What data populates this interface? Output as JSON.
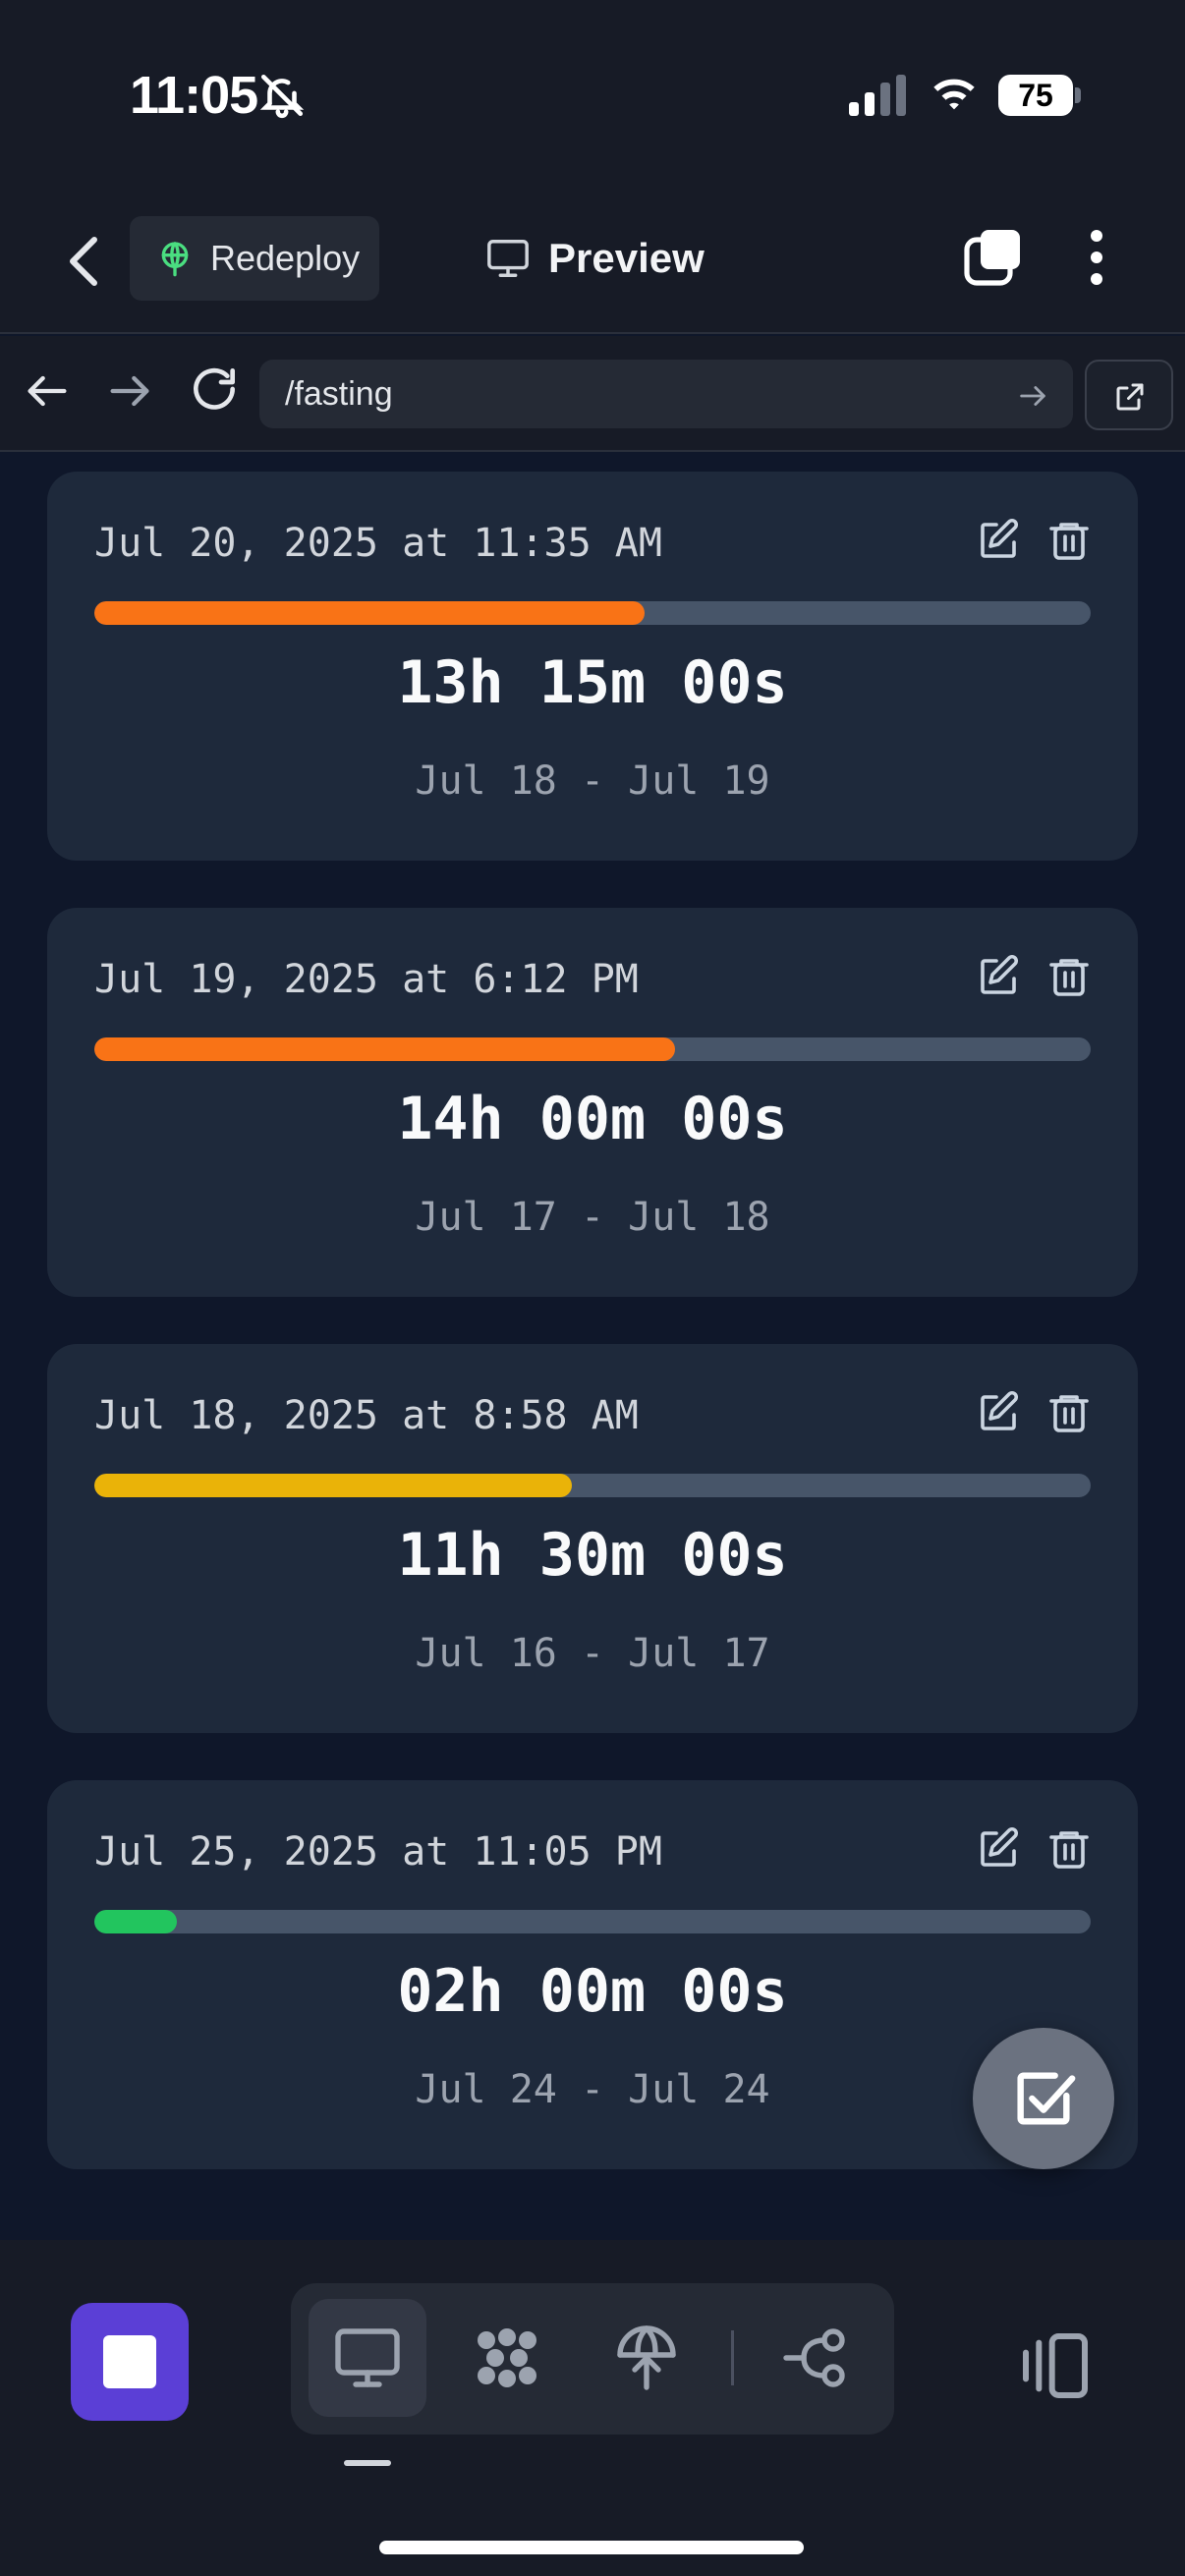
{
  "status_bar": {
    "time": "11:05",
    "battery": "75"
  },
  "header": {
    "redeploy_label": "Redeploy",
    "preview_label": "Preview"
  },
  "url_bar": {
    "path": "/fasting"
  },
  "cards": [
    {
      "date": "Jul 20, 2025 at 11:35 AM",
      "duration": "13h 15m 00s",
      "range": "Jul 18 - Jul 19",
      "progress": 0.552,
      "bar_color": "#f97316"
    },
    {
      "date": "Jul 19, 2025 at 6:12 PM",
      "duration": "14h 00m 00s",
      "range": "Jul 17 - Jul 18",
      "progress": 0.583,
      "bar_color": "#f97316"
    },
    {
      "date": "Jul 18, 2025 at 8:58 AM",
      "duration": "11h 30m 00s",
      "range": "Jul 16 - Jul 17",
      "progress": 0.479,
      "bar_color": "#eab308"
    },
    {
      "date": "Jul 25, 2025 at 11:05 PM",
      "duration": "02h 00m 00s",
      "range": "Jul 24 - Jul 24",
      "progress": 0.083,
      "bar_color": "#22c55e"
    }
  ],
  "colors": {
    "accent": "#5b3fd6",
    "card_bg": "#1e293b",
    "page_bg": "#0f172a",
    "track": "#475569"
  },
  "icons": {
    "status": [
      "bell-slash-icon",
      "signal-icon",
      "wifi-icon",
      "battery-icon"
    ],
    "header": [
      "back-chevron-icon",
      "redeploy-icon",
      "monitor-icon",
      "tabs-icon",
      "more-vertical-icon"
    ],
    "card": [
      "edit-icon",
      "trash-icon"
    ],
    "toolbar": [
      "stop-icon",
      "monitor-icon",
      "blocks-icon",
      "deploy-icon",
      "branch-icon",
      "panel-icon"
    ]
  }
}
